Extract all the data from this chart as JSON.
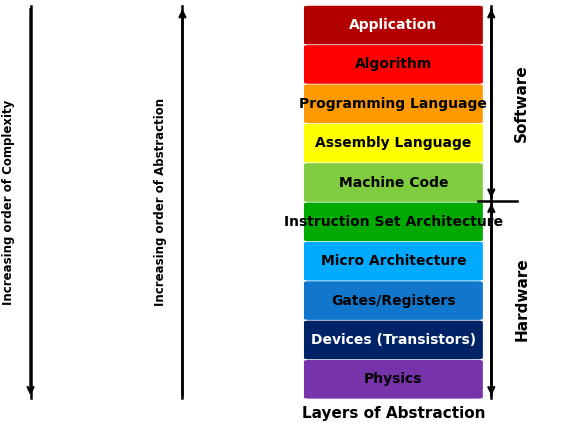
{
  "layers": [
    {
      "label": "Application",
      "color": "#B20000",
      "text_color": "#FFFFFF"
    },
    {
      "label": "Algorithm",
      "color": "#FF0000",
      "text_color": "#000000"
    },
    {
      "label": "Programming Language",
      "color": "#FF9900",
      "text_color": "#000000"
    },
    {
      "label": "Assembly Language",
      "color": "#FFFF00",
      "text_color": "#000000"
    },
    {
      "label": "Machine Code",
      "color": "#80CC40",
      "text_color": "#000000"
    },
    {
      "label": "Instruction Set Architecture",
      "color": "#00AA00",
      "text_color": "#000000"
    },
    {
      "label": "Micro Architecture",
      "color": "#00AAFF",
      "text_color": "#000000"
    },
    {
      "label": "Gates/Registers",
      "color": "#1177CC",
      "text_color": "#000000"
    },
    {
      "label": "Devices (Transistors)",
      "color": "#002266",
      "text_color": "#FFFFFF"
    },
    {
      "label": "Physics",
      "color": "#7733AA",
      "text_color": "#000000"
    }
  ],
  "xlabel": "Layers of Abstraction",
  "left_label1": "Increasing order of Complexity",
  "left_label2": "Increasing order of Abstraction",
  "right_label_top": "Software",
  "right_label_bottom": "Hardware",
  "software_layers": 5,
  "background_color": "#FFFFFF"
}
